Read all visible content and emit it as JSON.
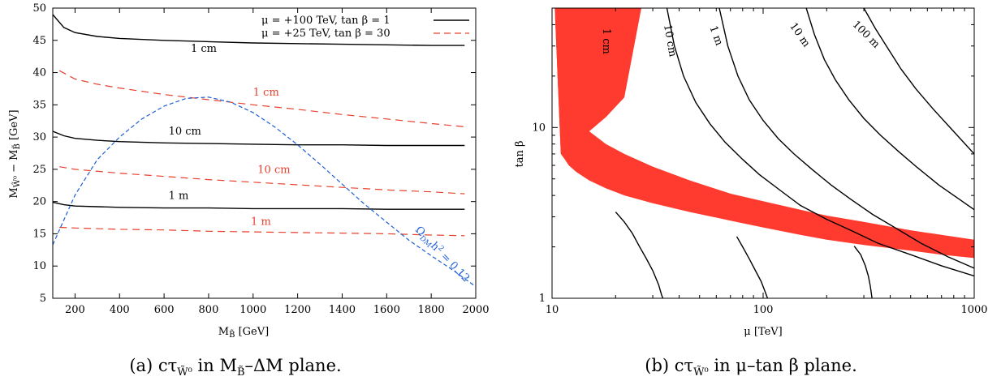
{
  "chart_data": [
    {
      "type": "line",
      "caption": "(a)  cτ̃W⁰ in M̃B–ΔM plane.",
      "xlabel": "M_B̃ [GeV]",
      "ylabel": "M_W̃⁰ − M_B̃ [GeV]",
      "xlim": [
        100,
        2000
      ],
      "ylim": [
        5,
        50
      ],
      "xticks": [
        "200",
        "400",
        "600",
        "800",
        "1000",
        "1200",
        "1400",
        "1600",
        "1800",
        "2000"
      ],
      "yticks": [
        "5",
        "10",
        "15",
        "20",
        "25",
        "30",
        "35",
        "40",
        "45",
        "50"
      ],
      "legend_position": "top-right",
      "legend": [
        "μ = +100 TeV, tan β = 1",
        "μ = +25 TeV, tan β = 30"
      ],
      "series": [
        {
          "name": "μ = +100 TeV, tan β = 1",
          "label": "1 cm",
          "color": "#000000",
          "dash": false,
          "x": [
            100,
            150,
            200,
            300,
            400,
            600,
            800,
            1000,
            1200,
            1400,
            1600,
            1800,
            1950
          ],
          "y": [
            49.0,
            47.0,
            46.2,
            45.6,
            45.3,
            45.0,
            44.8,
            44.6,
            44.5,
            44.4,
            44.3,
            44.2,
            44.2
          ]
        },
        {
          "name": "μ = +100 TeV, tan β = 1",
          "label": "10 cm",
          "color": "#000000",
          "dash": false,
          "x": [
            100,
            150,
            200,
            300,
            400,
            600,
            800,
            1000,
            1200,
            1400,
            1600,
            1800,
            1950
          ],
          "y": [
            30.9,
            30.2,
            29.8,
            29.5,
            29.3,
            29.1,
            29.0,
            28.9,
            28.8,
            28.8,
            28.7,
            28.7,
            28.7
          ]
        },
        {
          "name": "μ = +100 TeV, tan β = 1",
          "label": "1 m",
          "color": "#000000",
          "dash": false,
          "x": [
            100,
            150,
            200,
            300,
            400,
            600,
            800,
            1000,
            1200,
            1400,
            1600,
            1800,
            1950
          ],
          "y": [
            19.9,
            19.5,
            19.3,
            19.2,
            19.1,
            19.0,
            19.0,
            18.9,
            18.9,
            18.9,
            18.8,
            18.8,
            18.8
          ]
        },
        {
          "name": "μ = +25 TeV, tan β = 30",
          "label": "1 cm",
          "color": "#e8402e",
          "dash": true,
          "x": [
            130,
            200,
            300,
            400,
            600,
            800,
            1000,
            1200,
            1400,
            1600,
            1800,
            1950
          ],
          "y": [
            40.3,
            39.0,
            38.2,
            37.6,
            36.6,
            35.8,
            35.0,
            34.3,
            33.5,
            32.8,
            32.1,
            31.6
          ]
        },
        {
          "name": "μ = +25 TeV, tan β = 30",
          "label": "10 cm",
          "color": "#e8402e",
          "dash": true,
          "x": [
            130,
            200,
            400,
            600,
            800,
            1000,
            1200,
            1400,
            1600,
            1800,
            1950
          ],
          "y": [
            25.4,
            25.0,
            24.4,
            23.9,
            23.4,
            23.0,
            22.6,
            22.2,
            21.8,
            21.5,
            21.2
          ]
        },
        {
          "name": "μ = +25 TeV, tan β = 30",
          "label": "1 m",
          "color": "#e8402e",
          "dash": true,
          "x": [
            130,
            200,
            400,
            600,
            800,
            1000,
            1200,
            1400,
            1600,
            1800,
            1950
          ],
          "y": [
            16.0,
            15.9,
            15.7,
            15.6,
            15.4,
            15.3,
            15.2,
            15.1,
            15.0,
            14.8,
            14.7
          ]
        },
        {
          "name": "",
          "label": "Ω_DM h² = 0.12",
          "color": "#1f5fd6",
          "dash": true,
          "x": [
            100,
            200,
            300,
            400,
            500,
            600,
            700,
            800,
            900,
            1000,
            1100,
            1200,
            1300,
            1400,
            1500,
            1600,
            1700,
            1800,
            1900,
            2000
          ],
          "y": [
            13.3,
            21.0,
            26.5,
            30.0,
            32.8,
            34.8,
            36.0,
            36.2,
            35.4,
            33.8,
            31.5,
            28.8,
            25.8,
            22.7,
            19.6,
            16.8,
            14.0,
            11.6,
            9.3,
            6.8
          ]
        }
      ],
      "contour_labels": [
        {
          "text": "1 cm",
          "x": 720,
          "y": 43.2,
          "color": "#000000"
        },
        {
          "text": "1 cm",
          "x": 1000,
          "y": 36.4,
          "color": "#e8402e"
        },
        {
          "text": "10 cm",
          "x": 620,
          "y": 30.4,
          "color": "#000000"
        },
        {
          "text": "10 cm",
          "x": 1020,
          "y": 24.4,
          "color": "#e8402e"
        },
        {
          "text": "1 m",
          "x": 620,
          "y": 20.4,
          "color": "#000000"
        },
        {
          "text": "1 m",
          "x": 990,
          "y": 16.4,
          "color": "#e8402e"
        }
      ],
      "omega_label": "ΩDM h² = 0.12"
    },
    {
      "type": "area",
      "caption": "(b)  cτ̃W⁰ in μ–tan β plane.",
      "xlabel": "μ [TeV]",
      "ylabel": "tan β",
      "xscale": "log",
      "yscale": "log",
      "xlim": [
        10,
        1000
      ],
      "ylim": [
        1,
        50
      ],
      "xticks": [
        "10",
        "100",
        "1000"
      ],
      "yticks": [
        "1",
        "10"
      ],
      "band_color": "#ff3a2e",
      "band_upper": {
        "x": [
          10.3,
          11,
          13,
          16,
          20,
          24,
          26,
          26.5
        ],
        "y": [
          50,
          25,
          15,
          10.5,
          8,
          6,
          5,
          50
        ]
      },
      "band": {
        "upper_x": [
          10.3,
          10.6,
          11,
          12,
          13,
          15,
          18,
          22,
          30,
          45,
          70,
          100,
          150,
          200,
          300,
          500,
          700,
          1000
        ],
        "upper_y": [
          50,
          25,
          18,
          13.5,
          11.5,
          9.5,
          8.0,
          7.0,
          5.9,
          4.9,
          4.1,
          3.7,
          3.3,
          3.05,
          2.8,
          2.5,
          2.35,
          2.2
        ],
        "lower_x": [
          1000,
          700,
          500,
          300,
          200,
          150,
          100,
          70,
          45,
          30,
          22,
          18,
          15,
          13,
          12,
          11.5,
          11
        ],
        "lower_y": [
          1.72,
          1.8,
          1.9,
          2.05,
          2.2,
          2.35,
          2.6,
          2.85,
          3.2,
          3.6,
          4.0,
          4.4,
          4.9,
          5.5,
          6.0,
          6.5,
          7.0
        ],
        "top_x": [
          11,
          10.3,
          26.5,
          22,
          18,
          15,
          13,
          11
        ],
        "top_y": [
          7.0,
          50,
          50,
          15,
          11.5,
          9.5,
          8.5,
          7.0
        ]
      },
      "series": [
        {
          "label": "1 cm",
          "color": "#000000",
          "x": [],
          "y": []
        },
        {
          "label": "10 cm",
          "color": "#000000",
          "x": [
            35,
            38,
            42,
            48,
            56,
            66,
            80,
            96,
            120,
            150,
            200,
            260,
            350,
            500,
            700,
            1000
          ],
          "y": [
            50,
            30,
            20,
            14,
            10.5,
            8.2,
            6.5,
            5.3,
            4.3,
            3.5,
            2.9,
            2.5,
            2.1,
            1.8,
            1.55,
            1.35
          ]
        },
        {
          "label": "1 m",
          "color": "#000000",
          "x": [
            62,
            68,
            76,
            86,
            100,
            118,
            140,
            170,
            210,
            260,
            330,
            420,
            560,
            750,
            1000
          ],
          "y": [
            50,
            30,
            20,
            14.5,
            11,
            8.6,
            7,
            5.7,
            4.6,
            3.8,
            3.1,
            2.6,
            2.1,
            1.75,
            1.5
          ]
        },
        {
          "label": "10 m",
          "color": "#000000",
          "x": [
            160,
            175,
            195,
            220,
            255,
            300,
            360,
            440,
            540,
            680,
            850,
            1000
          ],
          "y": [
            50,
            35,
            25,
            19,
            14.5,
            11.3,
            9,
            7.2,
            5.8,
            4.6,
            3.8,
            3.3
          ]
        },
        {
          "label": "100 m",
          "color": "#000000",
          "x": [
            300,
            340,
            390,
            450,
            530,
            640,
            780,
            1000
          ],
          "y": [
            50,
            38,
            29,
            22,
            16.8,
            12.8,
            9.8,
            7.0
          ]
        },
        {
          "label": "",
          "color": "#000000",
          "x": [
            20,
            22,
            24,
            26,
            28,
            30,
            32,
            33,
            33.5
          ],
          "y": [
            3.2,
            2.8,
            2.4,
            2.0,
            1.7,
            1.45,
            1.2,
            1.05,
            1.0
          ]
        },
        {
          "label": "",
          "color": "#000000",
          "x": [
            75,
            80,
            86,
            92,
            98,
            102,
            104,
            105
          ],
          "y": [
            2.3,
            2.0,
            1.7,
            1.45,
            1.25,
            1.1,
            1.03,
            1.0
          ]
        },
        {
          "label": "",
          "color": "#000000",
          "x": [
            270,
            290,
            305,
            315,
            322,
            326,
            328
          ],
          "y": [
            2.02,
            1.8,
            1.55,
            1.35,
            1.18,
            1.06,
            1.0
          ]
        }
      ],
      "contour_labels": [
        {
          "text": "1 cm",
          "x": 17.5,
          "y": 32,
          "angle": 90
        },
        {
          "text": "10 cm",
          "x": 35,
          "y": 32,
          "angle": 80
        },
        {
          "text": "1 m",
          "x": 58,
          "y": 34,
          "angle": 70
        },
        {
          "text": "10 m",
          "x": 145,
          "y": 34,
          "angle": 55
        },
        {
          "text": "100 m",
          "x": 300,
          "y": 34,
          "angle": 45
        }
      ]
    }
  ]
}
